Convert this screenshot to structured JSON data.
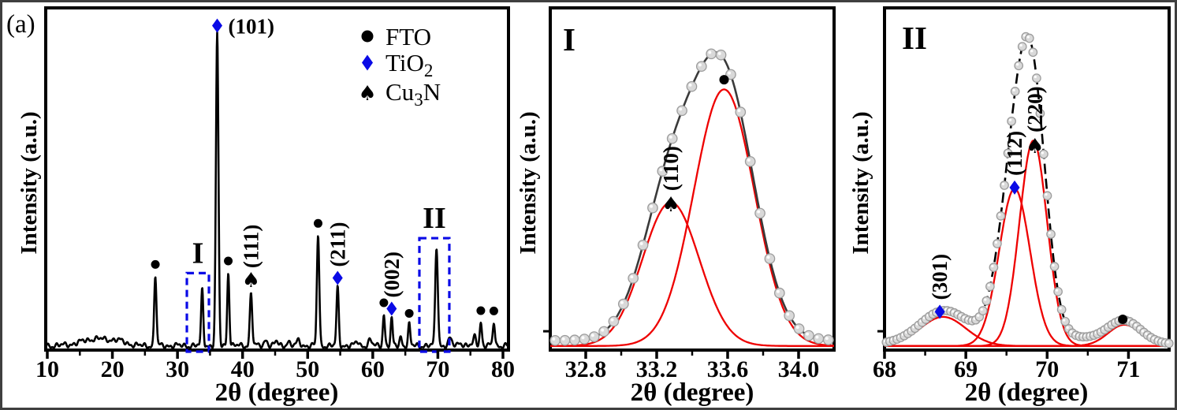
{
  "figure": {
    "panel_tag": "(a)",
    "icons": {
      "spade": "♠",
      "diamond": "◆",
      "circle": "●"
    },
    "colors": {
      "blue": "#0a0ae6",
      "red": "#ee0000",
      "black": "#000000",
      "envelope_gray": "#3a3a3a",
      "point_fill": "#d9d9d9",
      "point_edge": "#9c9c9c",
      "outer_border": "#3f3f3f"
    },
    "legend": [
      {
        "marker": "circle",
        "color": "#000000",
        "label": {
          "pre": "FTO",
          "sub": "",
          "post": ""
        }
      },
      {
        "marker": "diamond",
        "color": "#0a0ae6",
        "label": {
          "pre": "TiO",
          "sub": "2",
          "post": ""
        }
      },
      {
        "marker": "spade",
        "color": "#ee0000",
        "label": {
          "pre": "Cu",
          "sub": "3",
          "post": "N"
        }
      }
    ]
  },
  "chart_data": [
    {
      "id": "overview",
      "type": "line",
      "panel_label": "(a)",
      "title": "",
      "xlabel": "2θ (degree)",
      "ylabel": "Intensity (a.u.)",
      "xlim": [
        10,
        80
      ],
      "ylim": [
        0,
        1
      ],
      "grid": false,
      "xticks": [
        10,
        20,
        30,
        40,
        50,
        60,
        70,
        80
      ],
      "xtick_labels": [
        "10",
        "20",
        "30",
        "40",
        "50",
        "60",
        "70",
        "80"
      ],
      "minor_ticks": [
        15,
        25,
        35,
        45,
        55,
        65,
        75
      ],
      "baseline": 0.013,
      "peaks": [
        {
          "x": 26.6,
          "h": 0.205,
          "s": 0.17,
          "marker": "circle",
          "hkl": null,
          "hkl_orient": null
        },
        {
          "x": 33.8,
          "h": 0.165,
          "s": 0.16,
          "marker": "none",
          "hkl": null,
          "hkl_orient": null
        },
        {
          "x": 36.1,
          "h": 0.912,
          "s": 0.19,
          "marker": "diamond",
          "hkl": "(101)",
          "hkl_orient": "h"
        },
        {
          "x": 37.8,
          "h": 0.215,
          "s": 0.16,
          "marker": "circle",
          "hkl": null,
          "hkl_orient": null
        },
        {
          "x": 41.3,
          "h": 0.155,
          "s": 0.18,
          "marker": "spade",
          "hkl": "(111)",
          "hkl_orient": "v"
        },
        {
          "x": 51.6,
          "h": 0.325,
          "s": 0.18,
          "marker": "circle",
          "hkl": null,
          "hkl_orient": null
        },
        {
          "x": 54.6,
          "h": 0.168,
          "s": 0.17,
          "marker": "diamond",
          "hkl": "(211)",
          "hkl_orient": "v"
        },
        {
          "x": 61.7,
          "h": 0.093,
          "s": 0.16,
          "marker": "circle",
          "hkl": null,
          "hkl_orient": null
        },
        {
          "x": 62.9,
          "h": 0.078,
          "s": 0.15,
          "marker": "diamond",
          "hkl": "(002)",
          "hkl_orient": "v"
        },
        {
          "x": 65.6,
          "h": 0.062,
          "s": 0.16,
          "marker": "circle",
          "hkl": null,
          "hkl_orient": null
        },
        {
          "x": 69.8,
          "h": 0.288,
          "s": 0.2,
          "marker": "none",
          "hkl": null,
          "hkl_orient": null
        },
        {
          "x": 76.6,
          "h": 0.07,
          "s": 0.16,
          "marker": "circle",
          "hkl": null,
          "hkl_orient": null
        },
        {
          "x": 78.6,
          "h": 0.069,
          "s": 0.16,
          "marker": "circle",
          "hkl": null,
          "hkl_orient": null
        }
      ],
      "bumps": [
        {
          "x": 43.6,
          "h": 0.018,
          "s": 0.25
        },
        {
          "x": 45.2,
          "h": 0.012,
          "s": 0.25
        },
        {
          "x": 47.0,
          "h": 0.012,
          "s": 0.25
        },
        {
          "x": 48.6,
          "h": 0.015,
          "s": 0.25
        },
        {
          "x": 57.6,
          "h": 0.012,
          "s": 0.25
        },
        {
          "x": 59.6,
          "h": 0.016,
          "s": 0.25
        },
        {
          "x": 64.3,
          "h": 0.026,
          "s": 0.18
        },
        {
          "x": 71.9,
          "h": 0.02,
          "s": 0.25
        },
        {
          "x": 73.4,
          "h": 0.012,
          "s": 0.25
        },
        {
          "x": 75.7,
          "h": 0.028,
          "s": 0.2
        }
      ],
      "noise_humps": [
        {
          "c": 17.5,
          "h": 0.02,
          "s": 2.2
        },
        {
          "c": 21.0,
          "h": 0.01,
          "s": 1.2
        }
      ],
      "noise_wiggle": [
        [
          0.004,
          5.1,
          0
        ],
        [
          0.003,
          9.3,
          2
        ],
        [
          0.0035,
          2.1,
          1
        ]
      ],
      "regions": [
        {
          "label": "I",
          "x0": 31.44,
          "x1": 34.83,
          "top": 0.225
        },
        {
          "label": "II",
          "x0": 67.16,
          "x1": 71.76,
          "top": 0.327
        }
      ]
    },
    {
      "id": "zoom_I",
      "type": "line",
      "panel_label": "I",
      "xlabel": "2θ (degree)",
      "ylabel": "Intensity (a.u.)",
      "xlim": [
        32.6,
        34.2
      ],
      "ylim": [
        0,
        1
      ],
      "grid": false,
      "xticks": [
        32.8,
        33.2,
        33.6,
        34.0
      ],
      "xtick_labels": [
        "32.8",
        "33.2",
        "33.6",
        "34.0"
      ],
      "minor_ticks": [
        33.0,
        33.4,
        33.8
      ],
      "envelope": {
        "style": "solid",
        "color": "#3a3a3a",
        "base": 0.028
      },
      "component_base": 0.012,
      "components": [
        {
          "center": 33.28,
          "height": 0.42,
          "sigma": 0.16,
          "hkl": "(110)",
          "phase": "Cu3N",
          "envelope_only": false
        },
        {
          "center": 33.58,
          "height": 0.75,
          "sigma": 0.17,
          "hkl": null,
          "phase": "FTO",
          "envelope_only": false
        }
      ],
      "markers": [
        {
          "type": "spade",
          "color": "red",
          "x": 33.28,
          "y": 0.426,
          "hkl": "(110)"
        },
        {
          "type": "circle",
          "color": "black",
          "x": 33.58,
          "y": 0.79,
          "hkl": null
        }
      ],
      "point_step": 0.055,
      "point_radius": 6.2
    },
    {
      "id": "zoom_II",
      "type": "line",
      "panel_label": "II",
      "xlabel": "2θ (degree)",
      "ylabel": "Intensity (a.u.)",
      "xlim": [
        68,
        71.5
      ],
      "ylim": [
        0,
        1
      ],
      "grid": false,
      "xticks": [
        68,
        69,
        70,
        71
      ],
      "xtick_labels": [
        "68",
        "69",
        "70",
        "71"
      ],
      "minor_ticks": [
        68.5,
        69.5,
        70.5
      ],
      "envelope": {
        "style": "dashed",
        "color": "#000000",
        "base": 0.014
      },
      "component_base": 0.012,
      "components": [
        {
          "center": 68.72,
          "height": 0.085,
          "sigma": 0.28,
          "hkl": "(301)",
          "phase": "TiO2",
          "envelope_only": false
        },
        {
          "center": 69.6,
          "height": 0.46,
          "sigma": 0.19,
          "hkl": "(112)",
          "phase": "TiO2",
          "envelope_only": false
        },
        {
          "center": 69.83,
          "height": 0.6,
          "sigma": 0.17,
          "hkl": "(220)",
          "phase": "Cu3N",
          "envelope_only": false
        },
        {
          "center": 70.95,
          "height": 0.062,
          "sigma": 0.2,
          "hkl": null,
          "phase": "FTO",
          "envelope_only": false
        },
        {
          "center": 69.7,
          "height": 0.03,
          "sigma": 0.9,
          "hkl": null,
          "phase": null,
          "envelope_only": true
        }
      ],
      "markers": [
        {
          "type": "diamond",
          "color": "blue",
          "x": 68.68,
          "y": 0.112,
          "hkl": "(301)"
        },
        {
          "type": "diamond",
          "color": "blue",
          "x": 69.6,
          "y": 0.475,
          "hkl": "(112)"
        },
        {
          "type": "spade",
          "color": "red",
          "x": 69.85,
          "y": 0.597,
          "hkl": "(220)"
        },
        {
          "type": "circle",
          "color": "black",
          "x": 70.93,
          "y": 0.09,
          "hkl": null
        }
      ],
      "point_step": 0.044,
      "point_radius": 5.2
    }
  ]
}
